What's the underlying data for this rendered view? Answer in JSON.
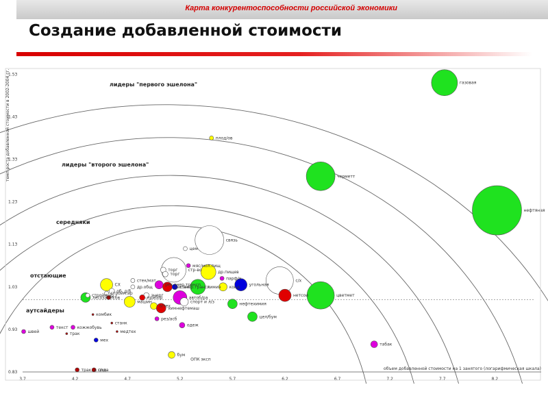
{
  "header": {
    "banner_title": "Карта конкурентоспособности российской экономики",
    "page_title": "Создание добавленной стоимости"
  },
  "chart_data": {
    "type": "scatter",
    "xlabel": "объем добавленной стоимости на 1 занятого (логарифмическая шкала)",
    "ylabel": "темп роста добавленной стоимости в 2002-2004 гг.",
    "x_ticks": [
      "3.7",
      "4.2",
      "4.7",
      "5.2",
      "5.7",
      "6.2",
      "6.7",
      "7.2",
      "7.7",
      "8.2"
    ],
    "y_ticks": [
      "1.53",
      "1.43",
      "1.33",
      "1.23",
      "1.13",
      "1.03",
      "0.93",
      "0.83"
    ],
    "xlim": [
      3.7,
      8.35
    ],
    "ylim": [
      0.83,
      1.53
    ],
    "zones": [
      "лидеры \"первого эшелона\"",
      "лидеры \"второго эшелона\"",
      "середняки",
      "отстающие",
      "аутсайдеры"
    ],
    "colors": {
      "green": "#1fe21f",
      "yellow": "#ffff00",
      "red": "#e00000",
      "blue": "#0000dd",
      "magenta": "#dd00dd",
      "white": "#ffffff",
      "darkred": "#b00000"
    },
    "points": [
      {
        "label": "газовая",
        "x": 7.72,
        "y": 1.51,
        "r": 19,
        "color": "green"
      },
      {
        "label": "нефтяная",
        "x": 8.22,
        "y": 1.21,
        "r": 36,
        "color": "green"
      },
      {
        "label": "черметт",
        "x": 6.54,
        "y": 1.29,
        "r": 21,
        "color": "green"
      },
      {
        "label": "цветмет",
        "x": 6.54,
        "y": 1.01,
        "r": 20,
        "color": "green"
      },
      {
        "label": "плод/ов",
        "x": 5.5,
        "y": 1.38,
        "r": 3,
        "color": "yellow"
      },
      {
        "label": "связь",
        "x": 5.48,
        "y": 1.14,
        "r": 21,
        "color": "white"
      },
      {
        "label": "цем",
        "x": 5.25,
        "y": 1.12,
        "r": 3,
        "color": "white"
      },
      {
        "label": "стр-во",
        "x": 5.14,
        "y": 1.07,
        "r": 18,
        "color": "white"
      },
      {
        "label": "мяс/мол.пищ",
        "x": 5.28,
        "y": 1.08,
        "r": 3,
        "color": "magenta"
      },
      {
        "label": "др.пищев",
        "x": 5.47,
        "y": 1.065,
        "r": 11,
        "color": "yellow"
      },
      {
        "label": "торг",
        "x": 5.04,
        "y": 1.07,
        "r": 4,
        "color": "white"
      },
      {
        "label": "торг",
        "x": 5.06,
        "y": 1.06,
        "r": 4,
        "color": "white"
      },
      {
        "label": "парф/х",
        "x": 5.6,
        "y": 1.05,
        "r": 3,
        "color": "magenta"
      },
      {
        "label": "с/х",
        "x": 6.15,
        "y": 1.045,
        "r": 20,
        "color": "white"
      },
      {
        "label": "стек/мат",
        "x": 4.75,
        "y": 1.045,
        "r": 3,
        "color": "white"
      },
      {
        "label": "СХ",
        "x": 4.5,
        "y": 1.035,
        "r": 9,
        "color": "yellow"
      },
      {
        "label": "др.общ",
        "x": 4.75,
        "y": 1.03,
        "r": 3,
        "color": "white"
      },
      {
        "label": "рек.энер.трансп",
        "x": 5.0,
        "y": 1.035,
        "r": 6,
        "color": "magenta"
      },
      {
        "label": "рек.энер.трансп",
        "x": 5.08,
        "y": 1.03,
        "r": 7,
        "color": "red"
      },
      {
        "label": "стек",
        "x": 5.15,
        "y": 1.03,
        "r": 4,
        "color": "blue"
      },
      {
        "label": "химия",
        "x": 5.37,
        "y": 1.03,
        "r": 11,
        "color": "green"
      },
      {
        "label": "конд",
        "x": 5.61,
        "y": 1.03,
        "r": 6,
        "color": "yellow"
      },
      {
        "label": "угольная",
        "x": 5.78,
        "y": 1.035,
        "r": 9,
        "color": "blue"
      },
      {
        "label": "нетсои",
        "x": 6.2,
        "y": 1.01,
        "r": 9,
        "color": "red"
      },
      {
        "label": "лесозагот",
        "x": 4.3,
        "y": 1.005,
        "r": 7,
        "color": "green"
      },
      {
        "label": "стройм.ар",
        "x": 4.32,
        "y": 1.01,
        "r": 3,
        "color": "white"
      },
      {
        "label": "стройм.ар",
        "x": 4.5,
        "y": 1.015,
        "r": 3,
        "color": "white"
      },
      {
        "label": "об. д/б",
        "x": 4.55,
        "y": 1.02,
        "r": 4,
        "color": "white"
      },
      {
        "label": "сбв",
        "x": 4.52,
        "y": 1.005,
        "r": 3,
        "color": "darkred"
      },
      {
        "label": "энерг",
        "x": 4.88,
        "y": 1.01,
        "r": 4,
        "color": "white"
      },
      {
        "label": "прибор",
        "x": 4.84,
        "y": 1.005,
        "r": 4,
        "color": "red"
      },
      {
        "label": "автоб/ра",
        "x": 5.2,
        "y": 1.005,
        "r": 10,
        "color": "magenta"
      },
      {
        "label": "машин",
        "x": 4.72,
        "y": 0.995,
        "r": 8,
        "color": "yellow"
      },
      {
        "label": "о/тех",
        "x": 4.95,
        "y": 0.985,
        "r": 5,
        "color": "yellow"
      },
      {
        "label": "химнефтемаш",
        "x": 5.02,
        "y": 0.98,
        "r": 7,
        "color": "red"
      },
      {
        "label": "спорт и л/з",
        "x": 5.24,
        "y": 0.995,
        "r": 6,
        "color": "white"
      },
      {
        "label": "нефтехимия",
        "x": 5.7,
        "y": 0.99,
        "r": 7,
        "color": "green"
      },
      {
        "label": "цел/бум",
        "x": 5.89,
        "y": 0.96,
        "r": 7,
        "color": "green"
      },
      {
        "label": "комбик",
        "x": 4.37,
        "y": 0.965,
        "r": 1.5,
        "color": "darkred"
      },
      {
        "label": "станк",
        "x": 4.55,
        "y": 0.945,
        "r": 1.5,
        "color": "darkred"
      },
      {
        "label": "рез/асб",
        "x": 4.98,
        "y": 0.955,
        "r": 3,
        "color": "magenta"
      },
      {
        "label": "текст",
        "x": 3.98,
        "y": 0.935,
        "r": 3,
        "color": "magenta"
      },
      {
        "label": "кожжобувь",
        "x": 4.18,
        "y": 0.935,
        "r": 3,
        "color": "magenta"
      },
      {
        "label": "медтех",
        "x": 4.6,
        "y": 0.925,
        "r": 1.5,
        "color": "darkred"
      },
      {
        "label": "одеж",
        "x": 5.22,
        "y": 0.94,
        "r": 4,
        "color": "magenta"
      },
      {
        "label": "швей",
        "x": 3.71,
        "y": 0.925,
        "r": 3,
        "color": "magenta"
      },
      {
        "label": "трак",
        "x": 4.12,
        "y": 0.92,
        "r": 1.5,
        "color": "darkred"
      },
      {
        "label": "мех",
        "x": 4.4,
        "y": 0.905,
        "r": 3,
        "color": "blue"
      },
      {
        "label": "бум",
        "x": 5.12,
        "y": 0.87,
        "r": 5,
        "color": "yellow"
      },
      {
        "label": "трак. и с/хо",
        "x": 4.22,
        "y": 0.835,
        "r": 3,
        "color": "darkred"
      },
      {
        "label": "пода",
        "x": 4.38,
        "y": 0.835,
        "r": 3,
        "color": "darkred"
      },
      {
        "label": "табак",
        "x": 7.05,
        "y": 0.895,
        "r": 5,
        "color": "magenta"
      },
      {
        "label": "ОПК эксп",
        "x": 5.3,
        "y": 0.86,
        "r": 0,
        "color": "white"
      }
    ]
  }
}
